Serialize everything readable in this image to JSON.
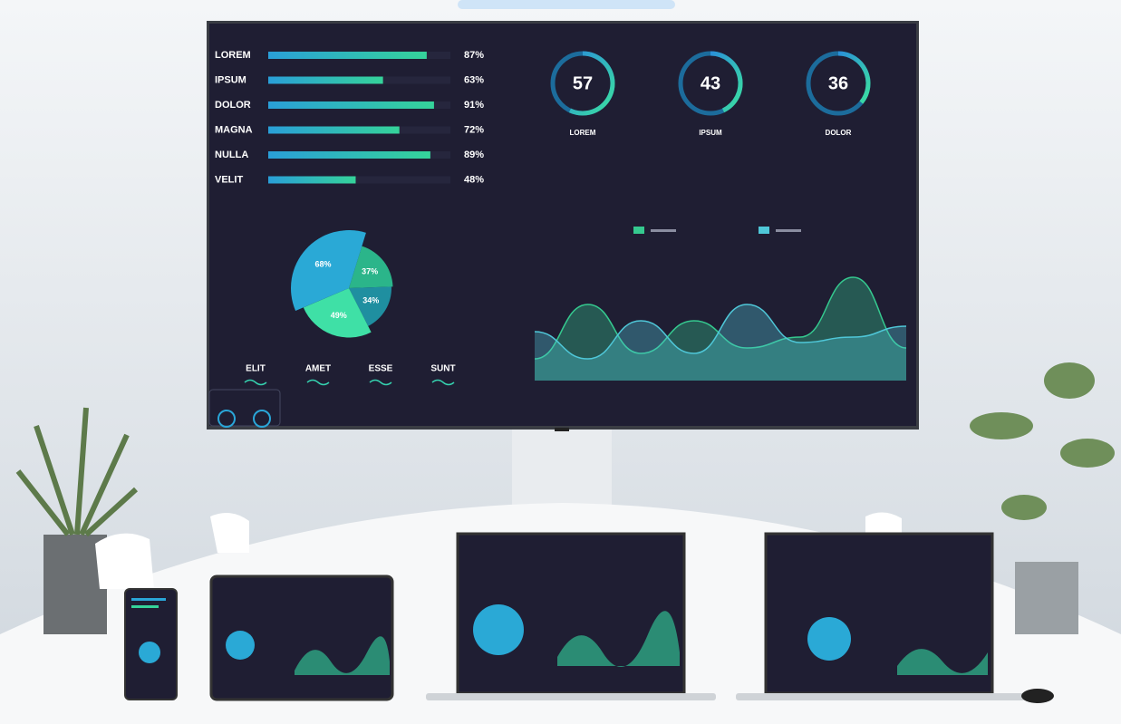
{
  "screen": {
    "bars": {
      "xlim": [
        0,
        100
      ],
      "items": [
        {
          "label": "LOREM",
          "value": 87,
          "value_label": "87%"
        },
        {
          "label": "IPSUM",
          "value": 63,
          "value_label": "63%"
        },
        {
          "label": "DOLOR",
          "value": 91,
          "value_label": "91%"
        },
        {
          "label": "MAGNA",
          "value": 72,
          "value_label": "72%"
        },
        {
          "label": "NULLA",
          "value": 89,
          "value_label": "89%"
        },
        {
          "label": "VELIT",
          "value": 48,
          "value_label": "48%"
        }
      ]
    },
    "gauges": {
      "max": 100,
      "items": [
        {
          "label": "LOREM",
          "value": 57
        },
        {
          "label": "IPSUM",
          "value": 43
        },
        {
          "label": "DOLOR",
          "value": 36
        }
      ]
    },
    "pie": {
      "items": [
        {
          "value": 37,
          "value_label": "37%",
          "color": "#2bb58a"
        },
        {
          "value": 34,
          "value_label": "34%",
          "color": "#1f8fa0"
        },
        {
          "value": 49,
          "value_label": "49%",
          "color": "#3fe0a6"
        },
        {
          "value": 68,
          "value_label": "68%",
          "color": "#2aa9d6"
        }
      ]
    },
    "waves": {
      "ylim": [
        0,
        100
      ],
      "series": [
        {
          "color": "#35c98f",
          "values": [
            20,
            70,
            25,
            55,
            30,
            40,
            95,
            30
          ]
        },
        {
          "color": "#4fc7d8",
          "values": [
            45,
            20,
            55,
            25,
            70,
            35,
            40,
            50
          ]
        }
      ]
    },
    "footer_labels": [
      "ELIT",
      "AMET",
      "ESSE",
      "SUNT"
    ]
  }
}
